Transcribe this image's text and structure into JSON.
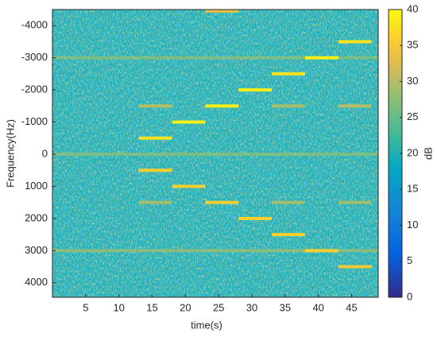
{
  "chart_data": {
    "type": "spectrogram",
    "xlabel": "time(s)",
    "ylabel": "Frequency(Hz)",
    "colorbar_label": "dB",
    "xlim": [
      0,
      49
    ],
    "xticks": [
      5,
      10,
      15,
      20,
      25,
      30,
      35,
      40,
      45
    ],
    "ylim": [
      4450,
      -4500
    ],
    "yticks": [
      -4000,
      -3000,
      -2000,
      -1000,
      0,
      1000,
      2000,
      3000,
      4000
    ],
    "clim": [
      0,
      40
    ],
    "cticks": [
      0,
      5,
      10,
      15,
      20,
      25,
      30,
      35,
      40
    ],
    "background_db": 20,
    "segments": [
      {
        "t": [
          0,
          49
        ],
        "f": 0,
        "db": 28
      },
      {
        "t": [
          0,
          49
        ],
        "f": -3000,
        "db": 28
      },
      {
        "t": [
          0,
          49
        ],
        "f": 3000,
        "db": 29
      },
      {
        "t": [
          13,
          18
        ],
        "f": -500,
        "db": 38
      },
      {
        "t": [
          13,
          18
        ],
        "f": 500,
        "db": 36
      },
      {
        "t": [
          18,
          23
        ],
        "f": -1000,
        "db": 39
      },
      {
        "t": [
          18,
          23
        ],
        "f": 1000,
        "db": 36
      },
      {
        "t": [
          23,
          28
        ],
        "f": -1500,
        "db": 39
      },
      {
        "t": [
          23,
          28
        ],
        "f": 1500,
        "db": 36
      },
      {
        "t": [
          23,
          28
        ],
        "f": -4500,
        "db": 33
      },
      {
        "t": [
          28,
          33
        ],
        "f": -2000,
        "db": 39
      },
      {
        "t": [
          28,
          33
        ],
        "f": 2000,
        "db": 36
      },
      {
        "t": [
          33,
          38
        ],
        "f": -2500,
        "db": 38
      },
      {
        "t": [
          33,
          38
        ],
        "f": 2500,
        "db": 36
      },
      {
        "t": [
          38,
          43
        ],
        "f": -3000,
        "db": 39
      },
      {
        "t": [
          38,
          43
        ],
        "f": 3000,
        "db": 36
      },
      {
        "t": [
          43,
          48
        ],
        "f": -3500,
        "db": 38
      },
      {
        "t": [
          43,
          48
        ],
        "f": 3500,
        "db": 35
      },
      {
        "t": [
          13,
          18
        ],
        "f": -1500,
        "db": 30
      },
      {
        "t": [
          13,
          18
        ],
        "f": 1500,
        "db": 29
      },
      {
        "t": [
          33,
          38
        ],
        "f": -1500,
        "db": 29
      },
      {
        "t": [
          33,
          38
        ],
        "f": 1500,
        "db": 29
      },
      {
        "t": [
          43,
          48
        ],
        "f": -1500,
        "db": 30
      },
      {
        "t": [
          43,
          48
        ],
        "f": 1500,
        "db": 29
      }
    ]
  }
}
